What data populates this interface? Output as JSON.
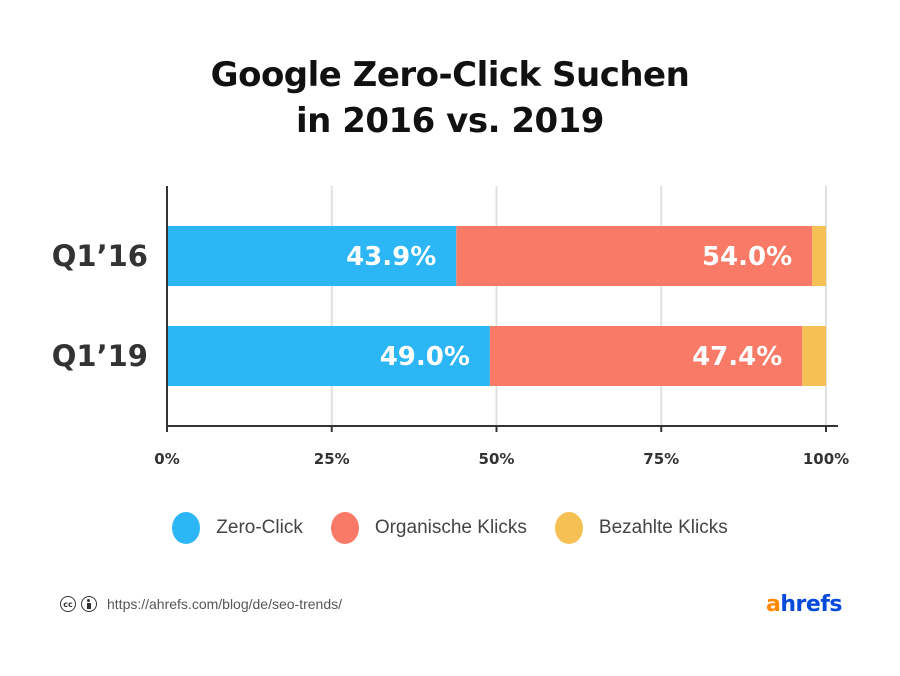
{
  "chart_data": {
    "type": "bar",
    "orientation": "horizontal",
    "stacked": true,
    "title": [
      "Google Zero-Click Suchen",
      "in 2016 vs. 2019"
    ],
    "categories": [
      "Q1’16",
      "Q1’19"
    ],
    "series": [
      {
        "name": "Zero-Click",
        "color": "#2cb6f6",
        "values": [
          43.9,
          49.0
        ],
        "labels": [
          "43.9%",
          "49.0%"
        ]
      },
      {
        "name": "Organische Klicks",
        "color": "#f97a67",
        "values": [
          54.0,
          47.4
        ],
        "labels": [
          "54.0%",
          "47.4%"
        ]
      },
      {
        "name": "Bezahlte Klicks",
        "color": "#f5c054",
        "values": [
          2.1,
          3.6
        ],
        "labels": [
          null,
          null
        ]
      }
    ],
    "xlim": [
      0,
      100
    ],
    "xticks": [
      0,
      25,
      50,
      75,
      100
    ],
    "xtick_labels": [
      "0%",
      "25%",
      "50%",
      "75%",
      "100%"
    ],
    "xlabel": "",
    "ylabel": "",
    "grid": "vertical",
    "legend_position": "bottom"
  },
  "footer": {
    "license_icons": [
      "cc-icon",
      "by-icon"
    ],
    "cc_text": "cc",
    "url": "https://ahrefs.com/blog/de/seo-trends/",
    "logo": {
      "a": "a",
      "rest": "hrefs"
    }
  }
}
